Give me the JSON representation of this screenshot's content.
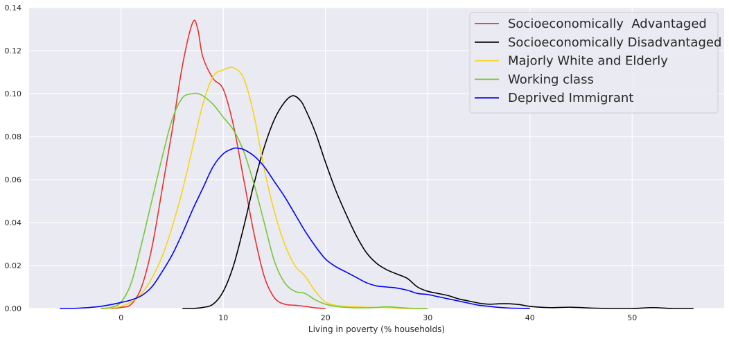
{
  "chart_data": {
    "type": "line",
    "title": "",
    "xlabel": "Living in poverty (% households)",
    "ylabel": "",
    "xlim": [
      -9,
      59
    ],
    "ylim": [
      0,
      0.14
    ],
    "xticks": [
      "0",
      "10",
      "20",
      "30",
      "40",
      "50"
    ],
    "yticks": [
      "0.00",
      "0.02",
      "0.04",
      "0.06",
      "0.08",
      "0.10",
      "0.12",
      "0.14"
    ],
    "grid": true,
    "background": "#eaeaf2",
    "legend_position": "top-right",
    "series": [
      {
        "name": "Socioeconomically  Advantaged",
        "color": "#e8302f",
        "x": [
          -1,
          0,
          1,
          2,
          3,
          4,
          5,
          6,
          7,
          7.5,
          8,
          9,
          10,
          11,
          12,
          13,
          14,
          15,
          16,
          17,
          18,
          19,
          20
        ],
        "y": [
          0.0,
          0.0005,
          0.002,
          0.01,
          0.028,
          0.055,
          0.083,
          0.113,
          0.133,
          0.13,
          0.117,
          0.107,
          0.102,
          0.085,
          0.06,
          0.035,
          0.015,
          0.005,
          0.002,
          0.0015,
          0.001,
          0.0003,
          0.0
        ]
      },
      {
        "name": "Socioeconomically Disadvantaged",
        "color": "#000000",
        "x": [
          6,
          7,
          8,
          9,
          10,
          11,
          12,
          13,
          14,
          15,
          16,
          16.8,
          17.5,
          18,
          19,
          20,
          21,
          22,
          23,
          24,
          25,
          26,
          27,
          28,
          29,
          30,
          31,
          32,
          33,
          34,
          35,
          36,
          37,
          38,
          39,
          40,
          42,
          44,
          46,
          48,
          50,
          52,
          54,
          56
        ],
        "y": [
          0.0,
          0.0,
          0.0005,
          0.002,
          0.008,
          0.02,
          0.038,
          0.058,
          0.075,
          0.088,
          0.096,
          0.099,
          0.097,
          0.093,
          0.082,
          0.068,
          0.055,
          0.044,
          0.034,
          0.026,
          0.021,
          0.018,
          0.016,
          0.014,
          0.01,
          0.008,
          0.007,
          0.006,
          0.0045,
          0.0035,
          0.0025,
          0.002,
          0.0022,
          0.0022,
          0.0018,
          0.001,
          0.0004,
          0.0006,
          0.0002,
          0.0,
          0.0,
          0.0004,
          0.0,
          0.0
        ]
      },
      {
        "name": "Majorly White and Elderly",
        "color": "#f7d413",
        "x": [
          -2,
          -1,
          0,
          1,
          2,
          3,
          4,
          5,
          6,
          7,
          8,
          9,
          10,
          11,
          12,
          13,
          14,
          15,
          16,
          17,
          18,
          19,
          20,
          21,
          22,
          23,
          24,
          26,
          28,
          30
        ],
        "y": [
          0.0,
          0.0002,
          0.001,
          0.003,
          0.007,
          0.014,
          0.024,
          0.038,
          0.055,
          0.075,
          0.095,
          0.108,
          0.111,
          0.112,
          0.107,
          0.09,
          0.065,
          0.045,
          0.03,
          0.02,
          0.015,
          0.008,
          0.003,
          0.0015,
          0.001,
          0.0008,
          0.0006,
          0.0004,
          0.0,
          0.0
        ]
      },
      {
        "name": "Working class",
        "color": "#76c734",
        "x": [
          -2,
          -1,
          0,
          1,
          2,
          3,
          4,
          5,
          6,
          7,
          7.5,
          8,
          9,
          10,
          11,
          12,
          13,
          14,
          15,
          16,
          17,
          18,
          19,
          20,
          21,
          22,
          24,
          25,
          26,
          27,
          28,
          29,
          30
        ],
        "y": [
          0.0,
          0.0005,
          0.003,
          0.012,
          0.03,
          0.05,
          0.07,
          0.088,
          0.098,
          0.1,
          0.1,
          0.099,
          0.095,
          0.089,
          0.083,
          0.073,
          0.058,
          0.04,
          0.022,
          0.012,
          0.008,
          0.007,
          0.004,
          0.002,
          0.001,
          0.0005,
          0.0003,
          0.0005,
          0.0008,
          0.0005,
          0.0002,
          0.0,
          0.0
        ]
      },
      {
        "name": "Deprived Immigrant",
        "color": "#0000ff",
        "x": [
          -6,
          -5,
          -4,
          -3,
          -2,
          -1,
          0,
          1,
          2,
          3,
          4,
          5,
          6,
          7,
          8,
          9,
          10,
          11,
          11.5,
          12,
          13,
          14,
          15,
          16,
          17,
          18,
          19,
          20,
          21,
          22,
          23,
          24,
          25,
          26,
          27,
          28,
          29,
          30,
          31,
          32,
          33,
          34,
          35,
          36,
          37,
          38,
          40
        ],
        "y": [
          0.0,
          0.0,
          0.0002,
          0.0005,
          0.001,
          0.0018,
          0.0028,
          0.004,
          0.006,
          0.01,
          0.017,
          0.025,
          0.035,
          0.046,
          0.056,
          0.066,
          0.072,
          0.0745,
          0.0745,
          0.074,
          0.071,
          0.066,
          0.059,
          0.052,
          0.044,
          0.036,
          0.029,
          0.023,
          0.0195,
          0.017,
          0.0145,
          0.012,
          0.0105,
          0.01,
          0.0095,
          0.0085,
          0.007,
          0.0065,
          0.0055,
          0.0045,
          0.0035,
          0.0025,
          0.0015,
          0.001,
          0.0005,
          0.0002,
          0.0
        ]
      }
    ]
  }
}
